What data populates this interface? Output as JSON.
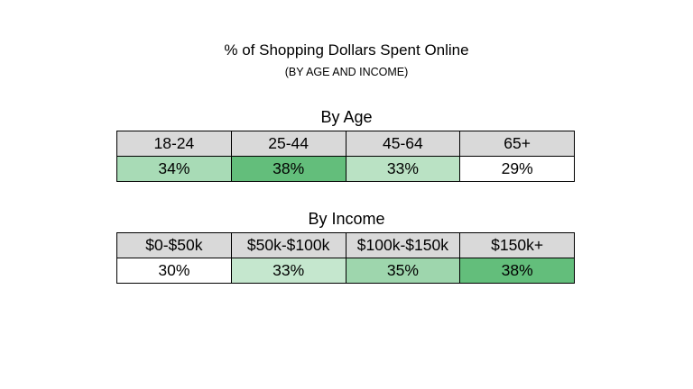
{
  "chart_data": {
    "type": "table",
    "title": "% of Shopping Dollars Spent Online",
    "subtitle": "(BY AGE AND INCOME)",
    "tables": [
      {
        "label": "By Age",
        "categories": [
          "18-24",
          "25-44",
          "45-64",
          "65+"
        ],
        "values": [
          34,
          38,
          33,
          29
        ],
        "value_labels": [
          "34%",
          "38%",
          "33%",
          "29%"
        ]
      },
      {
        "label": "By Income",
        "categories": [
          "$0-$50k",
          "$50k-$100k",
          "$100k-$150k",
          "$150k+"
        ],
        "values": [
          30,
          33,
          35,
          38
        ],
        "value_labels": [
          "30%",
          "33%",
          "35%",
          "38%"
        ]
      }
    ],
    "colors": {
      "header_fill": "#d9d9d9",
      "scale_low": "#ffffff",
      "scale_high": "#63be7b"
    }
  }
}
